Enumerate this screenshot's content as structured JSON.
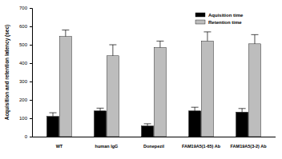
{
  "chart_data": {
    "type": "bar",
    "ylabel": "Acquisition and retention latency (sec)",
    "categories": [
      "WT",
      "human IgG",
      "Donepezil",
      "FAM19A5(1-65) Ab",
      "FAM19A5(3-2) Ab"
    ],
    "series": [
      {
        "name": "Aquisition time",
        "color": "#000000",
        "values": [
          110,
          140,
          58,
          140,
          133
        ],
        "errors": [
          20,
          15,
          12,
          20,
          20
        ]
      },
      {
        "name": "Retention time",
        "color": "#bdbdbd",
        "values": [
          545,
          440,
          485,
          520,
          505
        ],
        "errors": [
          35,
          60,
          35,
          50,
          50
        ]
      }
    ],
    "ylim": [
      0,
      700
    ],
    "yticks": [
      0,
      100,
      200,
      300,
      400,
      500,
      600,
      700
    ],
    "legend": "upper right",
    "grid": false
  }
}
